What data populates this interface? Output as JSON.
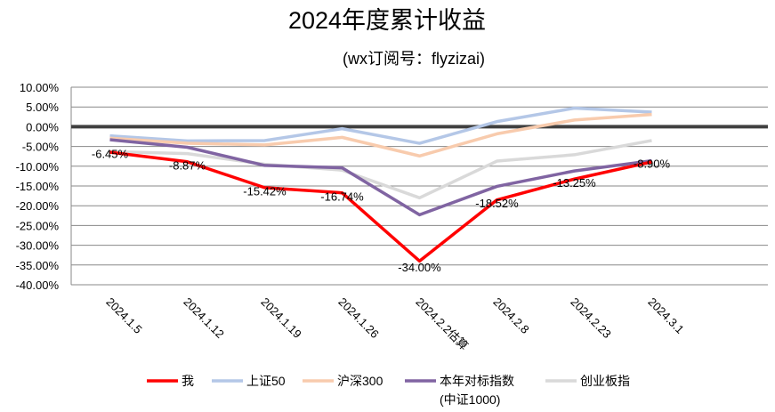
{
  "chart_data": {
    "type": "line",
    "title": "2024年度累计收益",
    "subtitle": "(wx订阅号：flyzizai)",
    "categories": [
      "2024.1.5",
      "2024.1.12",
      "2024.1.19",
      "2024.1.26",
      "2024.2.2估算",
      "2024.2.8",
      "2024.2.23",
      "2024.3.1"
    ],
    "ylim": [
      -40,
      10
    ],
    "yticks": [
      10,
      5,
      0,
      -5,
      -10,
      -15,
      -20,
      -25,
      -30,
      -35,
      -40
    ],
    "ytick_labels": [
      "10.00%",
      "5.00%",
      "0.00%",
      "-5.00%",
      "-10.00%",
      "-15.00%",
      "-20.00%",
      "-25.00%",
      "-30.00%",
      "-35.00%",
      "-40.00%"
    ],
    "grid": true,
    "legend_position": "bottom",
    "series": [
      {
        "name": "上证50",
        "color": "#b4c7e7",
        "values": [
          -2.3,
          -3.6,
          -3.5,
          -0.5,
          -4.2,
          1.3,
          4.7,
          3.7
        ]
      },
      {
        "name": "沪深300",
        "color": "#f8cbad",
        "values": [
          -2.9,
          -4.2,
          -4.6,
          -2.7,
          -7.4,
          -1.8,
          1.7,
          3.1
        ]
      },
      {
        "name": "创业板指",
        "color": "#d9d9d9",
        "values": [
          -6.3,
          -6.8,
          -9.5,
          -11.0,
          -18.0,
          -8.7,
          -7.1,
          -3.5
        ]
      },
      {
        "name": "本年对标指数(中证1000)",
        "color": "#8064a2",
        "values": [
          -3.3,
          -5.2,
          -9.8,
          -10.4,
          -22.3,
          -15.1,
          -11.2,
          -8.6
        ]
      },
      {
        "name": "我",
        "color": "#ff0000",
        "values": [
          -6.45,
          -8.87,
          -15.42,
          -16.74,
          -34.0,
          -18.52,
          -13.25,
          -8.9
        ],
        "data_labels": [
          "-6.45%",
          "-8.87%",
          "-15.42%",
          "-16.74%",
          "-34.00%",
          "-18.52%",
          "-13.25%",
          "-8.90%"
        ]
      }
    ],
    "legend": [
      "我",
      "上证50",
      "沪深300",
      "本年对标指数",
      "(中证1000)",
      "创业板指"
    ]
  }
}
